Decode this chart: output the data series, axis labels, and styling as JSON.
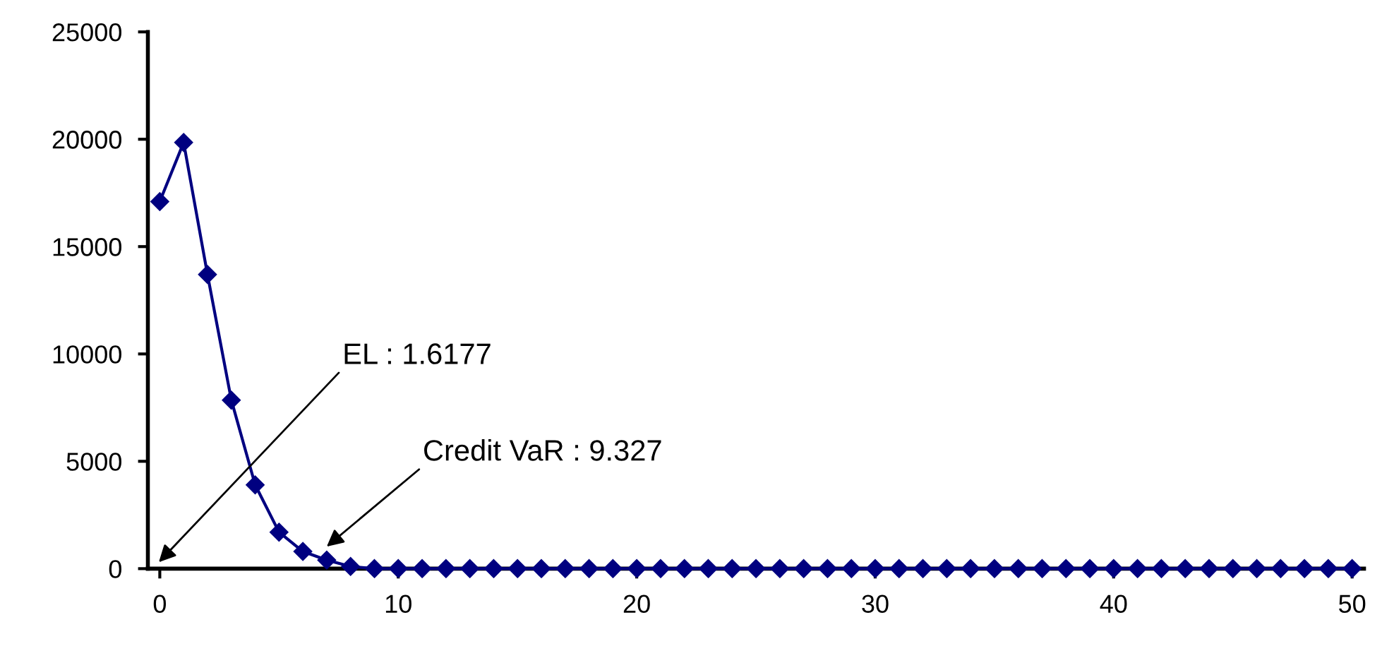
{
  "chart_data": {
    "type": "line",
    "x": [
      0,
      1,
      2,
      3,
      4,
      5,
      6,
      7,
      8,
      9,
      10,
      11,
      12,
      13,
      14,
      15,
      16,
      17,
      18,
      19,
      20,
      21,
      22,
      23,
      24,
      25,
      26,
      27,
      28,
      29,
      30,
      31,
      32,
      33,
      34,
      35,
      36,
      37,
      38,
      39,
      40,
      41,
      42,
      43,
      44,
      45,
      46,
      47,
      48,
      49,
      50
    ],
    "series": [
      {
        "color": "#000080",
        "values": [
          17100,
          19850,
          13700,
          7850,
          3900,
          1700,
          800,
          400,
          100,
          0,
          0,
          0,
          0,
          0,
          0,
          0,
          0,
          0,
          0,
          0,
          0,
          0,
          0,
          0,
          0,
          0,
          0,
          0,
          0,
          0,
          0,
          0,
          0,
          0,
          0,
          0,
          0,
          0,
          0,
          0,
          0,
          0,
          0,
          0,
          0,
          0,
          0,
          0,
          0,
          0,
          0
        ]
      }
    ],
    "xlim": [
      -0.5,
      50.5
    ],
    "xticks": [
      0,
      10,
      20,
      30,
      40,
      50
    ],
    "ylim": [
      0,
      25000
    ],
    "yticks": [
      0,
      5000,
      10000,
      15000,
      20000,
      25000
    ],
    "marker": "diamond",
    "line_style": "solid",
    "grid": false,
    "annotations": [
      "EL : 1.6177",
      "Credit VaR : 9.327"
    ]
  }
}
